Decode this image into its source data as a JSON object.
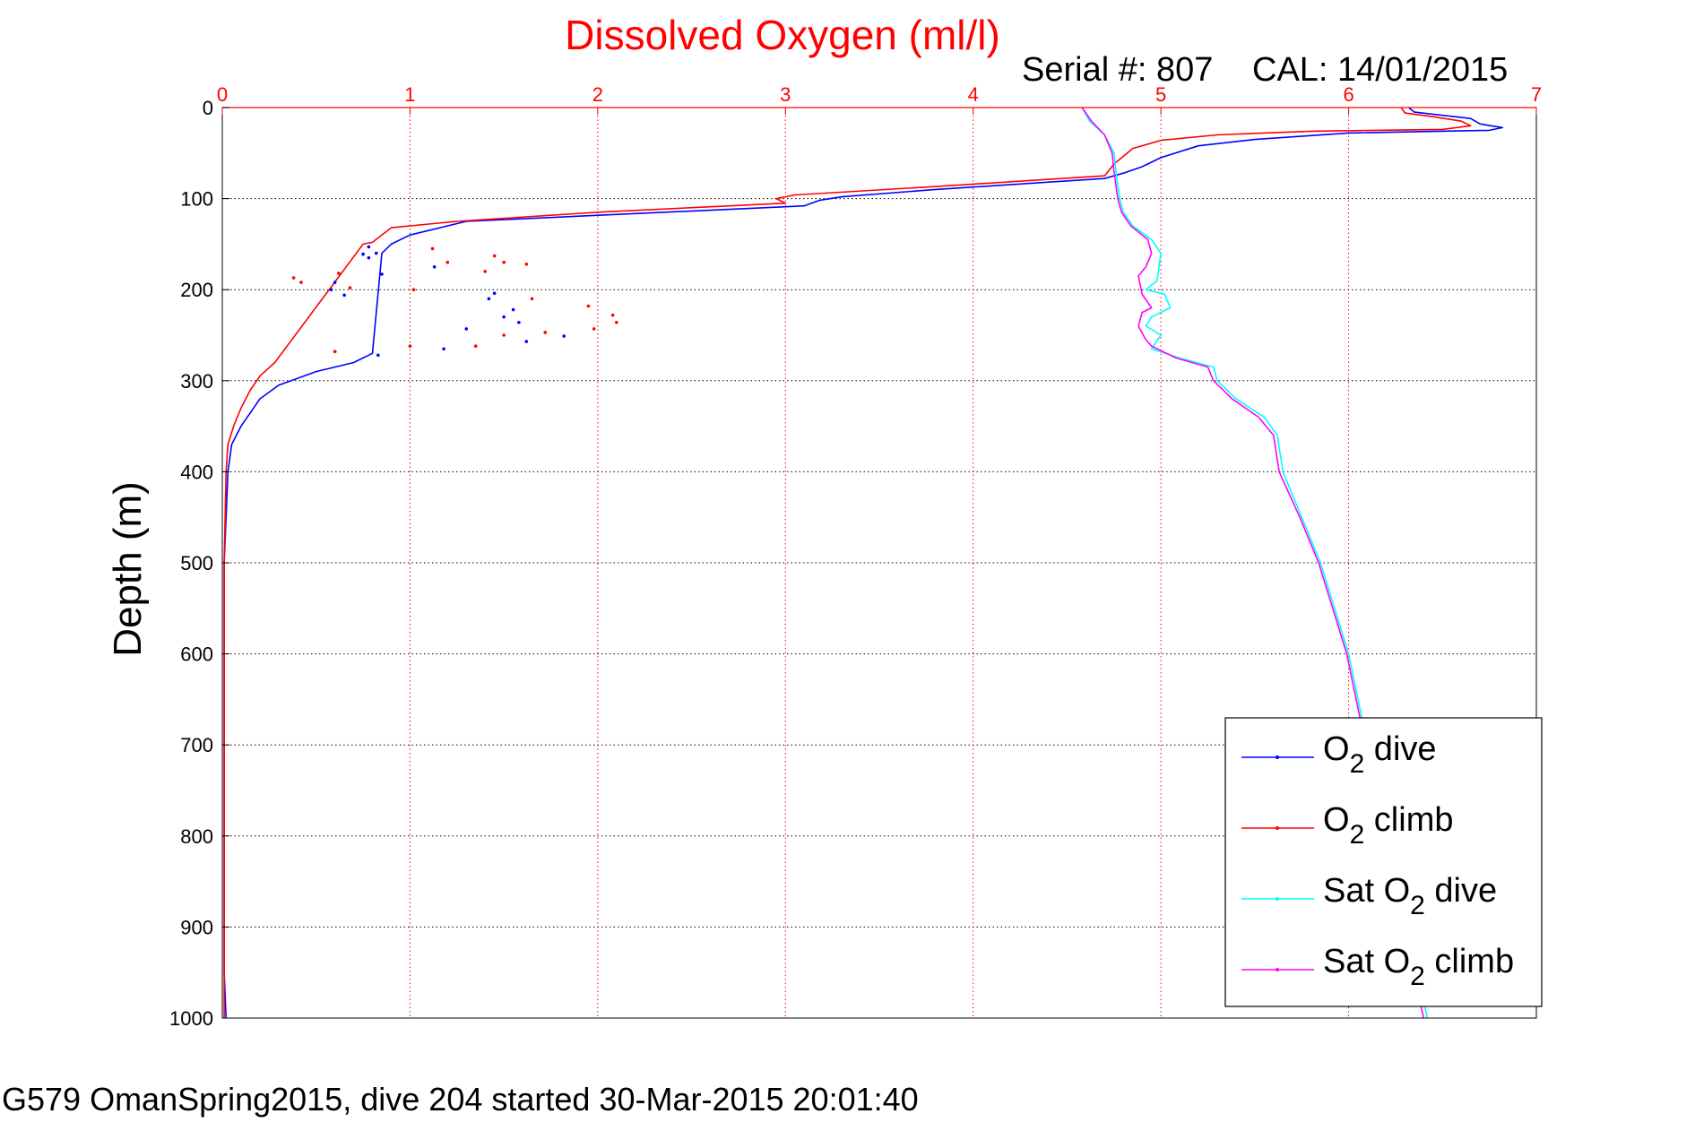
{
  "chart_data": {
    "type": "line",
    "title": "Dissolved Oxygen (ml/l)",
    "subtitle_serial": "Serial #: 807",
    "subtitle_cal": "CAL: 14/01/2015",
    "xlabel": "Dissolved Oxygen (ml/l)",
    "ylabel": "Depth (m)",
    "xlim": [
      0,
      7
    ],
    "ylim": [
      0,
      1000
    ],
    "y_reversed": true,
    "x_axis_position": "top",
    "grid": true,
    "legend_position": "bottom-right",
    "xticks": [
      "0",
      "1",
      "2",
      "3",
      "4",
      "5",
      "6",
      "7"
    ],
    "xtick_values": [
      0,
      1,
      2,
      3,
      4,
      5,
      6,
      7
    ],
    "yticks": [
      "0",
      "100",
      "200",
      "300",
      "400",
      "500",
      "600",
      "700",
      "800",
      "900",
      "1000"
    ],
    "ytick_values": [
      0,
      100,
      200,
      300,
      400,
      500,
      600,
      700,
      800,
      900,
      1000
    ],
    "colors": {
      "title": "#ff0000",
      "xtick": "#ff0000",
      "grid_x": "#ff0000",
      "grid_y": "#000000",
      "o2_dive": "#0000ff",
      "o2_climb": "#ff0000",
      "sat_dive": "#00ffff",
      "sat_climb": "#ff00ff"
    },
    "legend": [
      {
        "key": "o2_dive",
        "prefix": "O",
        "sub": "2",
        "suffix": " dive"
      },
      {
        "key": "o2_climb",
        "prefix": "O",
        "sub": "2",
        "suffix": " climb"
      },
      {
        "key": "sat_dive",
        "prefix": "Sat O",
        "sub": "2",
        "suffix": " dive"
      },
      {
        "key": "sat_climb",
        "prefix": "Sat O",
        "sub": "2",
        "suffix": " climb"
      }
    ],
    "series": [
      {
        "name": "O2 dive",
        "key": "o2_dive",
        "x": [
          6.32,
          6.35,
          6.65,
          6.7,
          6.82,
          6.75,
          6.0,
          5.5,
          5.2,
          5.0,
          4.9,
          4.8,
          4.7,
          3.8,
          3.3,
          3.18,
          3.1,
          1.3,
          1.0,
          0.9,
          0.85,
          0.8,
          0.7,
          0.5,
          0.3,
          0.2,
          0.15,
          0.1,
          0.05,
          0.03,
          0.02,
          0.01,
          0.01,
          0.01,
          0.01,
          0.01,
          0.01,
          0.02
        ],
        "y": [
          0,
          5,
          12,
          18,
          22,
          25,
          28,
          35,
          42,
          55,
          65,
          72,
          78,
          90,
          98,
          102,
          108,
          125,
          140,
          150,
          160,
          270,
          280,
          290,
          305,
          320,
          335,
          350,
          370,
          400,
          450,
          500,
          600,
          700,
          800,
          900,
          950,
          1000
        ]
      },
      {
        "name": "O2 climb",
        "key": "o2_climb",
        "x": [
          6.28,
          6.3,
          6.45,
          6.6,
          6.65,
          6.5,
          5.8,
          5.3,
          5.0,
          4.85,
          4.75,
          4.7,
          3.7,
          3.05,
          2.95,
          3.0,
          2.0,
          1.25,
          1.1,
          0.9,
          0.85,
          0.8,
          0.75,
          0.28,
          0.2,
          0.15,
          0.1,
          0.06,
          0.03,
          0.02,
          0.01,
          0.01,
          0.01,
          0.01,
          0.01,
          0.01,
          0.01
        ],
        "y": [
          0,
          6,
          10,
          15,
          20,
          24,
          26,
          30,
          36,
          45,
          62,
          75,
          88,
          96,
          100,
          105,
          115,
          125,
          128,
          132,
          140,
          148,
          150,
          280,
          295,
          310,
          330,
          350,
          370,
          400,
          500,
          600,
          700,
          800,
          900,
          950,
          1000
        ]
      },
      {
        "name": "Sat O2 dive",
        "key": "sat_dive",
        "x": [
          4.58,
          4.62,
          4.7,
          4.75,
          4.76,
          4.78,
          4.8,
          4.85,
          4.95,
          5.0,
          4.98,
          4.92,
          5.02,
          5.05,
          4.95,
          4.92,
          5.0,
          4.95,
          5.1,
          5.28,
          5.3,
          5.4,
          5.55,
          5.62,
          5.65,
          5.75,
          5.85,
          6.0,
          6.1,
          6.2,
          6.3,
          6.42
        ],
        "y": [
          0,
          15,
          30,
          50,
          70,
          100,
          115,
          130,
          145,
          160,
          190,
          200,
          205,
          220,
          230,
          240,
          250,
          265,
          275,
          285,
          300,
          320,
          340,
          360,
          400,
          450,
          500,
          600,
          700,
          800,
          900,
          1000
        ]
      },
      {
        "name": "Sat O2 climb",
        "key": "sat_climb",
        "x": [
          4.58,
          4.63,
          4.7,
          4.74,
          4.75,
          4.77,
          4.79,
          4.84,
          4.93,
          4.95,
          4.92,
          4.88,
          4.9,
          4.95,
          4.9,
          4.88,
          4.92,
          4.95,
          5.08,
          5.25,
          5.28,
          5.38,
          5.52,
          5.6,
          5.63,
          5.74,
          5.84,
          5.99,
          6.09,
          6.19,
          6.29,
          6.4
        ],
        "y": [
          0,
          15,
          30,
          50,
          70,
          100,
          115,
          130,
          145,
          160,
          175,
          185,
          205,
          220,
          225,
          240,
          255,
          262,
          275,
          285,
          300,
          320,
          340,
          360,
          400,
          450,
          500,
          600,
          700,
          800,
          900,
          1000
        ]
      }
    ],
    "scatter_points": [
      {
        "key": "o2_dive",
        "x": [
          0.58,
          0.6,
          0.65,
          0.78,
          0.85,
          0.82,
          1.13,
          1.42,
          1.45,
          1.5,
          1.55,
          1.3,
          1.58,
          1.62,
          1.82,
          1.18,
          0.83,
          0.78,
          0.75
        ],
        "y": [
          200,
          192,
          206,
          165,
          183,
          160,
          175,
          210,
          204,
          230,
          222,
          243,
          236,
          257,
          251,
          265,
          272,
          153,
          161
        ]
      },
      {
        "key": "o2_climb",
        "x": [
          0.38,
          0.42,
          0.62,
          0.68,
          0.6,
          1.12,
          1.2,
          1.4,
          1.45,
          1.5,
          1.65,
          1.62,
          1.95,
          1.98,
          2.08,
          2.1,
          1.5,
          1.72,
          0.6,
          1.0,
          1.35,
          1.02
        ],
        "y": [
          187,
          192,
          182,
          198,
          268,
          155,
          170,
          180,
          163,
          170,
          210,
          172,
          218,
          243,
          228,
          236,
          250,
          247,
          268,
          262,
          262,
          200
        ]
      }
    ]
  },
  "footer": "G579 OmanSpring2015, dive 204 started 30-Mar-2015 20:01:40"
}
